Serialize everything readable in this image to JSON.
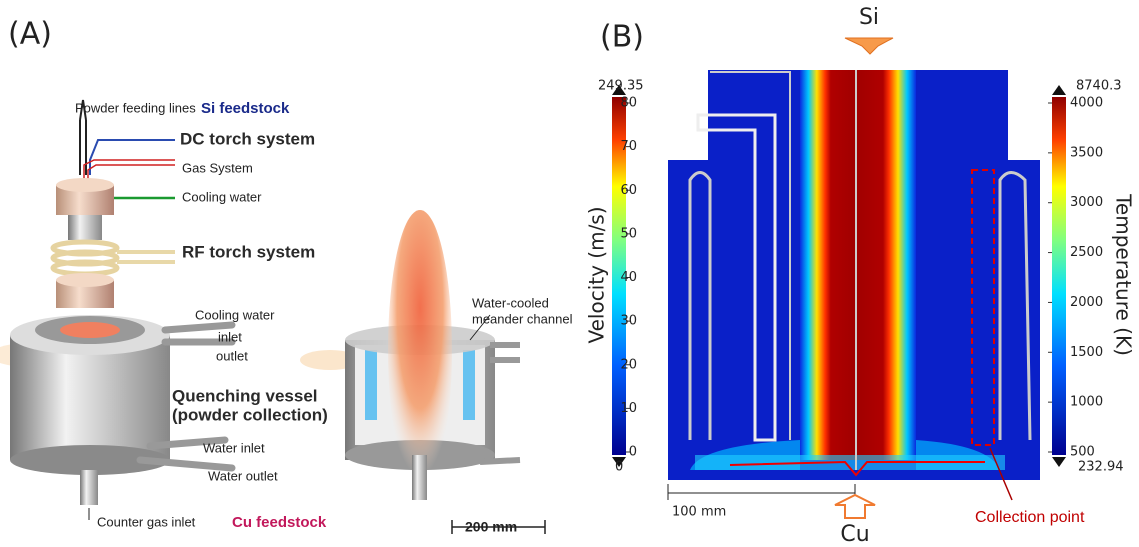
{
  "panel_a": {
    "label": "(A)",
    "powder_feeding_lines": "Powder feeding lines",
    "si_feedstock": "Si feedstock",
    "dc_torch": "DC torch system",
    "gas_system": "Gas System",
    "cooling_water_top": "Cooling water",
    "rf_torch": "RF torch system",
    "cooling_water": "Cooling water",
    "inlet": "inlet",
    "outlet": "outlet",
    "quenching_vessel": "Quenching vessel",
    "powder_collection": "(powder collection)",
    "water_inlet": "Water inlet",
    "water_outlet": "Water outlet",
    "counter_gas_inlet": "Counter gas inlet",
    "cu_feedstock": "Cu feedstock",
    "channel_line1": "Water-cooled",
    "channel_line2": "meander channel",
    "scale": "200 mm"
  },
  "panel_b": {
    "label": "(B)",
    "top_inlet": "Si",
    "bottom_inlet": "Cu",
    "velocity": {
      "title": "Velocity (m/s)",
      "max": 249.35,
      "min": 0,
      "ticks": [
        0,
        10,
        20,
        30,
        40,
        50,
        60,
        70,
        80
      ]
    },
    "temperature": {
      "title": "Temperature (K)",
      "max": 8740.3,
      "min": 232.94,
      "ticks": [
        500,
        1000,
        1500,
        2000,
        2500,
        3000,
        3500,
        4000
      ]
    },
    "scale": "100 mm",
    "collection_point": "Collection point"
  }
}
